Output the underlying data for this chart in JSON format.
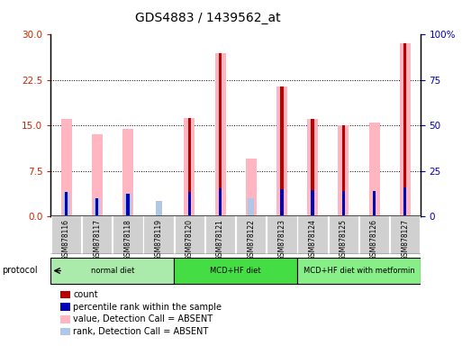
{
  "title": "GDS4883 / 1439562_at",
  "samples": [
    "GSM878116",
    "GSM878117",
    "GSM878118",
    "GSM878119",
    "GSM878120",
    "GSM878121",
    "GSM878122",
    "GSM878123",
    "GSM878124",
    "GSM878125",
    "GSM878126",
    "GSM878127"
  ],
  "count": [
    null,
    null,
    null,
    null,
    16.2,
    27.0,
    null,
    21.5,
    16.0,
    15.0,
    null,
    28.5
  ],
  "percentile_rank": [
    13.5,
    10.0,
    12.5,
    null,
    13.5,
    15.5,
    null,
    15.0,
    14.5,
    14.0,
    14.0,
    16.0
  ],
  "value_absent": [
    16.0,
    13.5,
    14.5,
    null,
    16.2,
    27.0,
    9.5,
    21.5,
    16.0,
    15.0,
    15.5,
    28.5
  ],
  "rank_absent": [
    13.5,
    10.0,
    12.5,
    8.5,
    null,
    null,
    10.0,
    null,
    null,
    null,
    null,
    null
  ],
  "show_count": [
    false,
    false,
    false,
    false,
    true,
    true,
    false,
    true,
    true,
    true,
    false,
    true
  ],
  "show_percentile": [
    true,
    true,
    true,
    false,
    true,
    true,
    false,
    true,
    true,
    true,
    true,
    true
  ],
  "show_value_absent": [
    true,
    true,
    true,
    false,
    true,
    true,
    true,
    true,
    true,
    true,
    true,
    true
  ],
  "show_rank_absent": [
    true,
    true,
    true,
    true,
    false,
    false,
    true,
    false,
    false,
    false,
    false,
    false
  ],
  "ylim_left": [
    0,
    30
  ],
  "ylim_right": [
    0,
    100
  ],
  "yticks_left": [
    0,
    7.5,
    15,
    22.5,
    30
  ],
  "yticks_right": [
    0,
    25,
    50,
    75,
    100
  ],
  "protocol_groups": [
    {
      "label": "normal diet",
      "start": 0,
      "end": 3,
      "color": "#90EE90"
    },
    {
      "label": "MCD+HF diet",
      "start": 4,
      "end": 7,
      "color": "#33CC33"
    },
    {
      "label": "MCD+HF diet with metformin",
      "start": 8,
      "end": 11,
      "color": "#66FF66"
    }
  ],
  "color_count": "#BB0000",
  "color_percentile": "#0000BB",
  "color_value_absent": "#FFB6C1",
  "color_rank_absent": "#B0C8E8",
  "left_label_color": "#CC2200",
  "right_label_color": "#0000BB",
  "tick_bg_color": "#D0D0D0",
  "figsize": [
    5.13,
    3.84
  ],
  "dpi": 100
}
